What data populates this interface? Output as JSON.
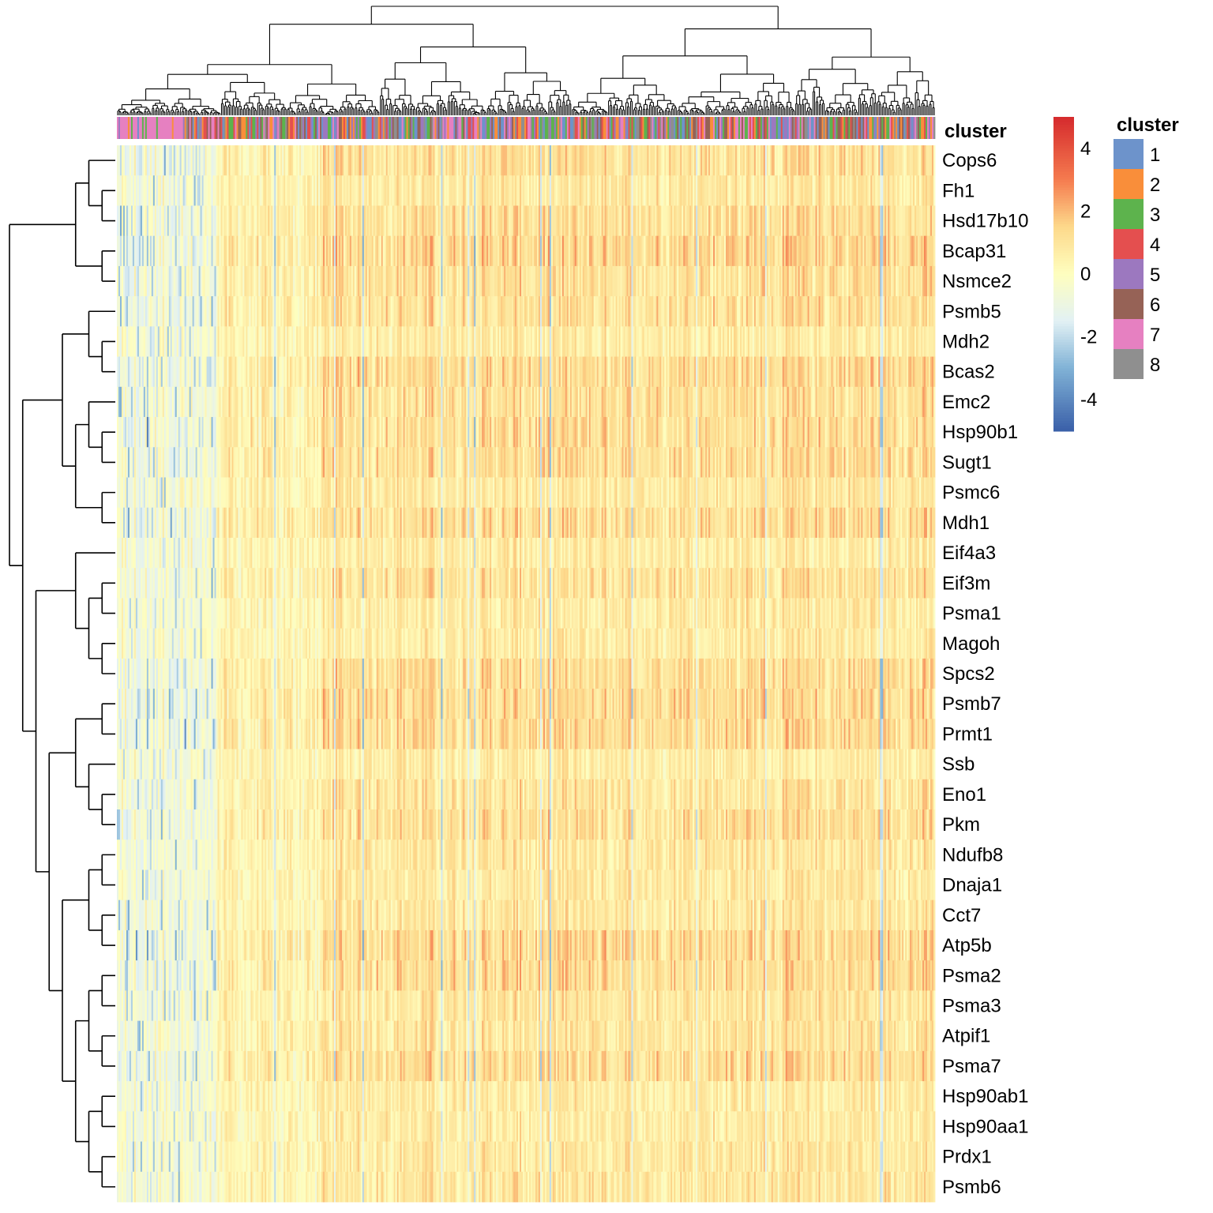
{
  "chart_data": {
    "type": "heatmap",
    "title": "",
    "xlabel": "",
    "ylabel": "",
    "rows": [
      "Cops6",
      "Fh1",
      "Hsd17b10",
      "Bcap31",
      "Nsmce2",
      "Psmb5",
      "Mdh2",
      "Bcas2",
      "Emc2",
      "Hsp90b1",
      "Sugt1",
      "Psmc6",
      "Mdh1",
      "Eif4a3",
      "Eif3m",
      "Psma1",
      "Magoh",
      "Spcs2",
      "Psmb7",
      "Prmt1",
      "Ssb",
      "Eno1",
      "Pkm",
      "Ndufb8",
      "Dnaja1",
      "Cct7",
      "Atp5b",
      "Psma2",
      "Psma3",
      "Atpif1",
      "Psma7",
      "Hsp90ab1",
      "Hsp90aa1",
      "Prdx1",
      "Psmb6"
    ],
    "row_dendrogram": true,
    "column_dendrogram": true,
    "column_annotation": {
      "name": "cluster",
      "legend_title": "cluster",
      "levels": [
        "1",
        "2",
        "3",
        "4",
        "5",
        "6",
        "7",
        "8"
      ],
      "colors": [
        "#6d93cb",
        "#f98e3a",
        "#5db34d",
        "#e44f4f",
        "#9c78bf",
        "#966256",
        "#e680c1",
        "#8f8f8f"
      ]
    },
    "colorbar": {
      "range": [
        -5,
        5
      ],
      "ticks": [
        "4",
        "2",
        "0",
        "-2",
        "-4"
      ],
      "tick_values": [
        4,
        2,
        0,
        -2,
        -4
      ],
      "stops": [
        {
          "value": -5,
          "color": "#3a5fa8"
        },
        {
          "value": -3,
          "color": "#80b2d6"
        },
        {
          "value": -1.5,
          "color": "#e2f1f4"
        },
        {
          "value": 0,
          "color": "#fefebf"
        },
        {
          "value": 1.5,
          "color": "#fdd98b"
        },
        {
          "value": 3,
          "color": "#f57b4f"
        },
        {
          "value": 5,
          "color": "#d52a2d"
        }
      ]
    }
  }
}
